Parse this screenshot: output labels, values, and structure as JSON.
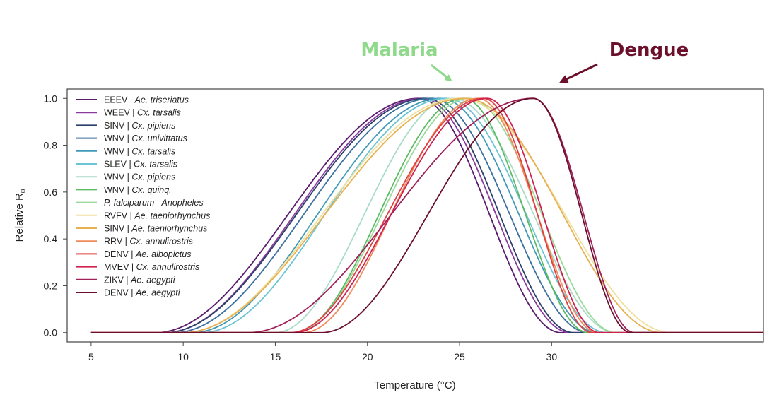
{
  "chart_data": {
    "type": "line",
    "xlabel": "Temperature (°C)",
    "ylabel": "Relative R",
    "ylabel_subscript": "0",
    "xlim": [
      3.7,
      41.5
    ],
    "ylim": [
      -0.04,
      1.04
    ],
    "xticks": [
      5,
      10,
      15,
      20,
      25,
      30
    ],
    "yticks": [
      0.0,
      0.2,
      0.4,
      0.6,
      0.8,
      1.0
    ],
    "legend_position": "top-left",
    "annotations": [
      {
        "text": "Malaria",
        "color": "#8fd98a",
        "points_to_x": 25
      },
      {
        "text": "Dengue",
        "color": "#6b0f2a",
        "points_to_x": 30
      }
    ],
    "series": [
      {
        "pathogen": "EEEV",
        "vector": "Ae. triseriatus",
        "color": "#5a1a6e",
        "tmin": 8.5,
        "tpeak": 22.8,
        "tmax": 30.5
      },
      {
        "pathogen": "WEEV",
        "vector": "Cx. tarsalis",
        "color": "#8a3a9c",
        "tmin": 9.0,
        "tpeak": 23.0,
        "tmax": 31.0
      },
      {
        "pathogen": "SINV",
        "vector": "Cx. pipiens",
        "color": "#2c3e6b",
        "tmin": 9.0,
        "tpeak": 23.2,
        "tmax": 31.2
      },
      {
        "pathogen": "WNV",
        "vector": "Cx. univittatus",
        "color": "#3a6fa0",
        "tmin": 9.5,
        "tpeak": 23.5,
        "tmax": 32.0
      },
      {
        "pathogen": "WNV",
        "vector": "Cx. tarsalis",
        "color": "#3f9ab8",
        "tmin": 10.5,
        "tpeak": 24.0,
        "tmax": 32.5
      },
      {
        "pathogen": "SLEV",
        "vector": "Cx. tarsalis",
        "color": "#6bc4d4",
        "tmin": 11.0,
        "tpeak": 24.3,
        "tmax": 33.0
      },
      {
        "pathogen": "WNV",
        "vector": "Cx. pipiens",
        "color": "#a8dcc8",
        "tmin": 15.0,
        "tpeak": 24.6,
        "tmax": 33.5
      },
      {
        "pathogen": "WNV",
        "vector": "Cx. quinq.",
        "color": "#5dbb63",
        "tmin": 16.0,
        "tpeak": 25.2,
        "tmax": 32.0
      },
      {
        "pathogen": "P. falciparum",
        "vector": "Anopheles",
        "color": "#9ad99a",
        "tmin": 16.0,
        "tpeak": 25.5,
        "tmax": 33.5
      },
      {
        "pathogen": "RVFV",
        "vector": "Ae. taeniorhynchus",
        "color": "#f0e0a0",
        "tmin": 10.0,
        "tpeak": 25.0,
        "tmax": 36.5
      },
      {
        "pathogen": "SINV",
        "vector": "Ae. taeniorhynchus",
        "color": "#e8b050",
        "tmin": 10.0,
        "tpeak": 25.3,
        "tmax": 36.0
      },
      {
        "pathogen": "RRV",
        "vector": "Cx. annulirostris",
        "color": "#f08a5a",
        "tmin": 16.5,
        "tpeak": 26.0,
        "tmax": 32.5
      },
      {
        "pathogen": "DENV",
        "vector": "Ae. albopictus",
        "color": "#e04040",
        "tmin": 15.8,
        "tpeak": 26.3,
        "tmax": 32.2
      },
      {
        "pathogen": "MVEV",
        "vector": "Cx. annulirostris",
        "color": "#d02050",
        "tmin": 16.0,
        "tpeak": 26.5,
        "tmax": 32.6
      },
      {
        "pathogen": "ZIKV",
        "vector": "Ae. aegypti",
        "color": "#a0205a",
        "tmin": 13.5,
        "tpeak": 29.0,
        "tmax": 34.5
      },
      {
        "pathogen": "DENV",
        "vector": "Ae. aegypti",
        "color": "#6b0f2a",
        "tmin": 17.5,
        "tpeak": 29.0,
        "tmax": 34.3
      }
    ]
  }
}
